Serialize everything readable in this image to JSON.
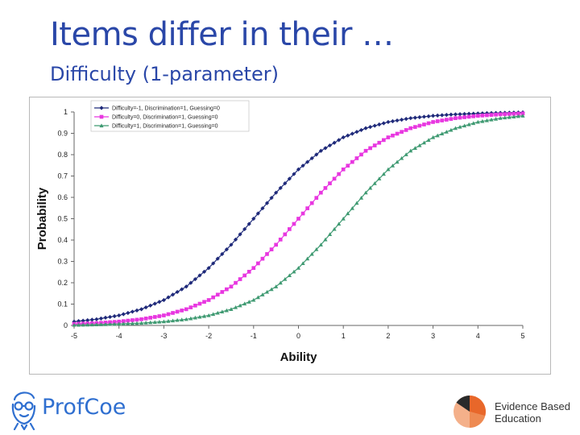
{
  "slide": {
    "title": "Items differ in their …",
    "subtitle": "Difficulty (1-parameter)"
  },
  "branding": {
    "left_logo_text": "ProfCoe",
    "right_logo_line1": "Evidence Based",
    "right_logo_line2": "Education"
  },
  "chart_data": {
    "type": "line",
    "xlabel": "Ability",
    "ylabel": "Probability",
    "xlim": [
      -5,
      5
    ],
    "ylim": [
      0,
      1
    ],
    "x_ticks": [
      -5,
      -4,
      -3,
      -2,
      -1,
      0,
      1,
      2,
      3,
      4,
      5
    ],
    "y_ticks": [
      0,
      0.1,
      0.2,
      0.3,
      0.4,
      0.5,
      0.6,
      0.7,
      0.8,
      0.9,
      1
    ],
    "y_tick_labels": [
      "0",
      "0.1",
      "0.2",
      "0.3",
      "0.4",
      "0.5",
      "0.6",
      "0.7",
      "0.8",
      "0.9",
      "1"
    ],
    "grid": false,
    "legend_position": "top-left",
    "x": [
      -5,
      -4.5,
      -4,
      -3.5,
      -3,
      -2.5,
      -2,
      -1.5,
      -1,
      -0.5,
      0,
      0.5,
      1,
      1.5,
      2,
      2.5,
      3,
      3.5,
      4,
      4.5,
      5
    ],
    "series": [
      {
        "name": "Difficulty=-1, Discrimination=1, Guessing=0",
        "color": "#1f2a7a",
        "marker": "diamond",
        "values": [
          0.018,
          0.029,
          0.047,
          0.076,
          0.119,
          0.182,
          0.269,
          0.378,
          0.5,
          0.622,
          0.731,
          0.818,
          0.881,
          0.924,
          0.953,
          0.971,
          0.982,
          0.989,
          0.993,
          0.996,
          0.998
        ]
      },
      {
        "name": "Difficulty=0, Discrimination=1, Guessing=0",
        "color": "#e837e0",
        "marker": "square",
        "values": [
          0.007,
          0.011,
          0.018,
          0.029,
          0.047,
          0.076,
          0.119,
          0.182,
          0.269,
          0.378,
          0.5,
          0.622,
          0.731,
          0.818,
          0.881,
          0.924,
          0.953,
          0.971,
          0.982,
          0.989,
          0.993
        ]
      },
      {
        "name": "Difficulty=1, Discrimination=1, Guessing=0",
        "color": "#3f9a72",
        "marker": "triangle",
        "values": [
          0.002,
          0.004,
          0.007,
          0.011,
          0.018,
          0.029,
          0.047,
          0.076,
          0.119,
          0.182,
          0.269,
          0.378,
          0.5,
          0.622,
          0.731,
          0.818,
          0.881,
          0.924,
          0.953,
          0.971,
          0.982
        ]
      }
    ]
  }
}
